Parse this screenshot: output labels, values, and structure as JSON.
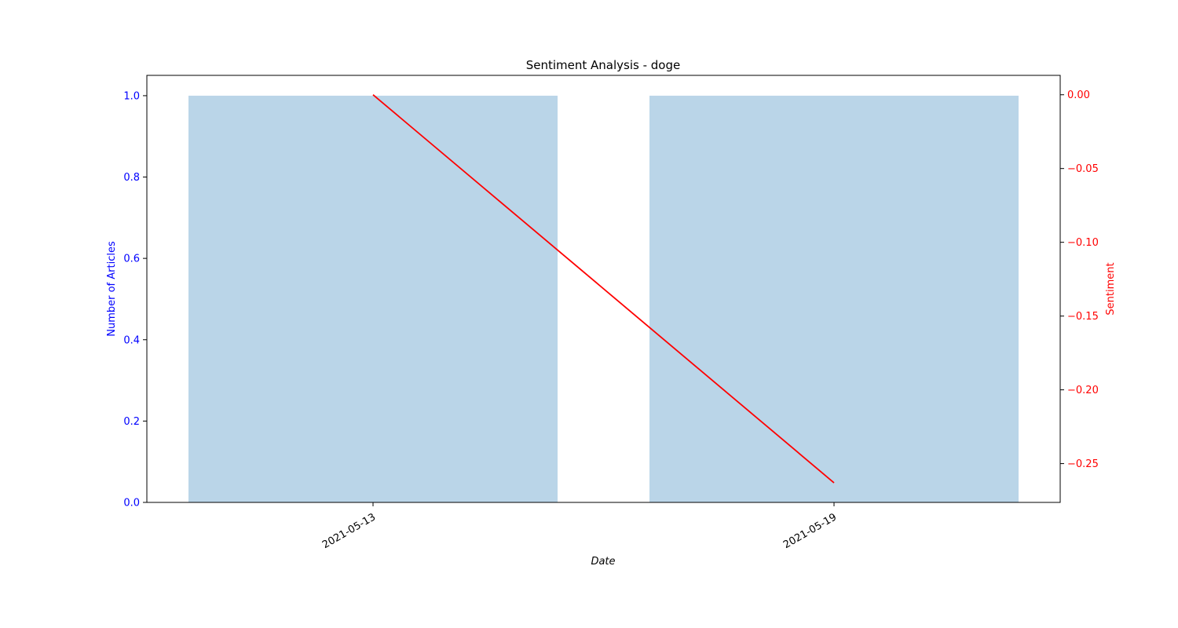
{
  "chart_data": {
    "type": "bar",
    "title": "Sentiment Analysis - doge",
    "xlabel": "Date",
    "categories": [
      "2021-05-13",
      "2021-05-19"
    ],
    "series": [
      {
        "axis": "left",
        "type": "bar",
        "values": [
          1,
          1
        ],
        "color": "#bad5e8"
      },
      {
        "axis": "right",
        "type": "line",
        "values": [
          0.0,
          -0.263
        ],
        "color": "#ff0000"
      }
    ],
    "y_left": {
      "label": "Number of Articles",
      "color": "#0000ff",
      "lim": [
        0,
        1.05
      ],
      "ticks": [
        0.0,
        0.2,
        0.4,
        0.6,
        0.8,
        1.0
      ],
      "tick_labels": [
        "0.0",
        "0.2",
        "0.4",
        "0.6",
        "0.8",
        "1.0"
      ]
    },
    "y_right": {
      "label": "Sentiment",
      "color": "#ff0000",
      "lim": [
        -0.2763,
        0.01315
      ],
      "ticks": [
        0.0,
        -0.05,
        -0.1,
        -0.15,
        -0.2,
        -0.25
      ],
      "tick_labels": [
        "0.00",
        "−0.05",
        "−0.10",
        "−0.15",
        "−0.20",
        "−0.25"
      ]
    },
    "grid": false,
    "legend": "none"
  }
}
